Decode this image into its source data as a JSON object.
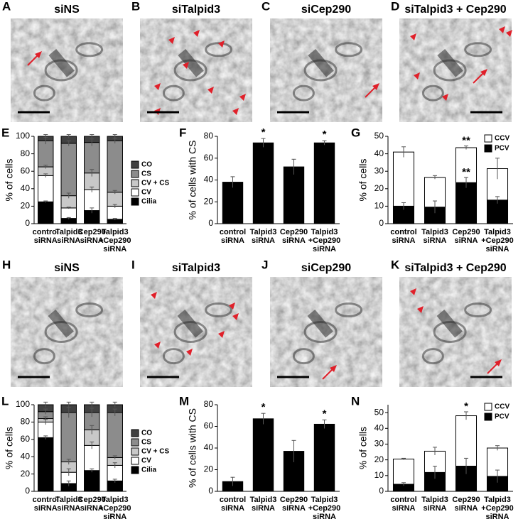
{
  "panels": [
    {
      "label": "A",
      "title": "siNS"
    },
    {
      "label": "B",
      "title": "siTalpid3"
    },
    {
      "label": "C",
      "title": "siCep290"
    },
    {
      "label": "D",
      "title": "siTalpid3 + Cep290"
    },
    {
      "label": "H",
      "title": "siNS"
    },
    {
      "label": "I",
      "title": "siTalpid3"
    },
    {
      "label": "J",
      "title": "siCep290"
    },
    {
      "label": "K",
      "title": "siTalpid3 + Cep290"
    }
  ],
  "chart_data": [
    {
      "type": "stacked_bar",
      "label": "E",
      "ylabel": "% of cells",
      "categories": [
        [
          "control",
          "siRNA"
        ],
        [
          "Talpid3",
          "siRNA"
        ],
        [
          "Cep290",
          "siRNA"
        ],
        [
          "Talpid3",
          "+Cep290",
          "siRNA"
        ]
      ],
      "ylim": [
        0,
        100
      ],
      "yticks": [
        0,
        20,
        40,
        60,
        80,
        100
      ],
      "legend": "right",
      "series": [
        {
          "name": "Cilia",
          "color": "#000000",
          "values": [
            25,
            6,
            15,
            5
          ],
          "errors": [
            1,
            1,
            3,
            1
          ]
        },
        {
          "name": "CV",
          "color": "#ffffff",
          "values": [
            30,
            12,
            24,
            15
          ],
          "errors": [
            2,
            1,
            3,
            2
          ]
        },
        {
          "name": "CV + CS",
          "color": "#c8c8c8",
          "values": [
            10,
            14,
            19,
            16
          ],
          "errors": [
            2,
            3,
            4,
            2
          ]
        },
        {
          "name": "CS",
          "color": "#8c8c8c",
          "values": [
            30,
            60,
            35,
            59
          ],
          "errors": [
            4,
            3,
            4,
            3
          ]
        },
        {
          "name": "CO",
          "color": "#404040",
          "values": [
            5,
            8,
            7,
            5
          ],
          "errors": [
            2,
            2,
            2,
            2
          ]
        }
      ]
    },
    {
      "type": "bar",
      "label": "F",
      "ylabel": "% of cells with CS",
      "categories": [
        [
          "control",
          "siRNA"
        ],
        [
          "Talpid3",
          "siRNA"
        ],
        [
          "Cep290",
          "siRNA"
        ],
        [
          "Talpid3",
          "+Cep290",
          "siRNA"
        ]
      ],
      "ylim": [
        0,
        80
      ],
      "yticks": [
        0,
        20,
        40,
        60,
        80
      ],
      "color": "#000000",
      "values": [
        38,
        74,
        52,
        74
      ],
      "errors": [
        5,
        4,
        7,
        2
      ],
      "significance": [
        null,
        "*",
        null,
        "*"
      ]
    },
    {
      "type": "stacked_bar",
      "label": "G",
      "ylabel": "% of cells",
      "categories": [
        [
          "control",
          "siRNA"
        ],
        [
          "Talpid3",
          "siRNA"
        ],
        [
          "Cep290",
          "siRNA"
        ],
        [
          "Talpid3",
          "+Cep290",
          "siRNA"
        ]
      ],
      "ylim": [
        0,
        50
      ],
      "yticks": [
        0,
        10,
        20,
        30,
        40,
        50
      ],
      "legend": "upper right",
      "series": [
        {
          "name": "PCV",
          "color": "#000000",
          "values": [
            10,
            9.5,
            23.5,
            13.5
          ],
          "errors": [
            2,
            3.5,
            3,
            2
          ],
          "significance": [
            null,
            null,
            "**",
            null
          ]
        },
        {
          "name": "CCV",
          "color": "#ffffff",
          "values": [
            31,
            17,
            20,
            18
          ],
          "errors": [
            3,
            1,
            1,
            6
          ],
          "significance": [
            null,
            null,
            "**",
            null
          ]
        }
      ]
    },
    {
      "type": "stacked_bar",
      "label": "L",
      "ylabel": "% of cells",
      "categories": [
        [
          "control",
          "siRNA"
        ],
        [
          "Talpid3",
          "siRNA"
        ],
        [
          "Cep290",
          "siRNA"
        ],
        [
          "Talpid3",
          "+Cep290",
          "siRNA"
        ]
      ],
      "ylim": [
        0,
        100
      ],
      "yticks": [
        0,
        20,
        40,
        60,
        80,
        100
      ],
      "legend": "right",
      "series": [
        {
          "name": "Cilia",
          "color": "#000000",
          "values": [
            62,
            9,
            24,
            12
          ],
          "errors": [
            2,
            3,
            2,
            2
          ]
        },
        {
          "name": "CV",
          "color": "#ffffff",
          "values": [
            18,
            13,
            29,
            18
          ],
          "errors": [
            3,
            4,
            4,
            3
          ]
        },
        {
          "name": "CV + CS",
          "color": "#c8c8c8",
          "values": [
            4,
            12,
            18,
            9
          ],
          "errors": [
            2,
            3,
            5,
            2
          ]
        },
        {
          "name": "CS",
          "color": "#8c8c8c",
          "values": [
            8,
            57,
            20,
            52
          ],
          "errors": [
            3,
            6,
            5,
            4
          ]
        },
        {
          "name": "CO",
          "color": "#404040",
          "values": [
            8,
            9,
            9,
            9
          ],
          "errors": [
            3,
            3,
            3,
            3
          ]
        }
      ]
    },
    {
      "type": "bar",
      "label": "M",
      "ylabel": "% of cells with CS",
      "categories": [
        [
          "control",
          "siRNA"
        ],
        [
          "Talpid3",
          "siRNA"
        ],
        [
          "Cep290",
          "siRNA"
        ],
        [
          "Talpid3",
          "+Cep290",
          "siRNA"
        ]
      ],
      "ylim": [
        0,
        80
      ],
      "yticks": [
        0,
        20,
        40,
        60,
        80
      ],
      "color": "#000000",
      "values": [
        9,
        67,
        37,
        62
      ],
      "errors": [
        4,
        5,
        10,
        4
      ],
      "significance": [
        null,
        "*",
        null,
        "*"
      ]
    },
    {
      "type": "stacked_bar",
      "label": "N",
      "ylabel": "% of cells",
      "categories": [
        [
          "control",
          "siRNA"
        ],
        [
          "Talpid3",
          "siRNA"
        ],
        [
          "Cep290",
          "siRNA"
        ],
        [
          "Talpid3",
          "+Cep290",
          "siRNA"
        ]
      ],
      "ylim": [
        0,
        55
      ],
      "yticks": [
        0,
        10,
        20,
        30,
        40,
        50
      ],
      "legend": "upper right",
      "series": [
        {
          "name": "PCV",
          "color": "#000000",
          "values": [
            4.5,
            12,
            16,
            9.5
          ],
          "errors": [
            1,
            4,
            5,
            4
          ]
        },
        {
          "name": "CCV",
          "color": "#ffffff",
          "values": [
            16,
            13.5,
            32,
            18
          ],
          "errors": [
            0.5,
            2.5,
            2.5,
            1.5
          ],
          "significance": [
            null,
            null,
            "*",
            null
          ]
        }
      ]
    }
  ]
}
